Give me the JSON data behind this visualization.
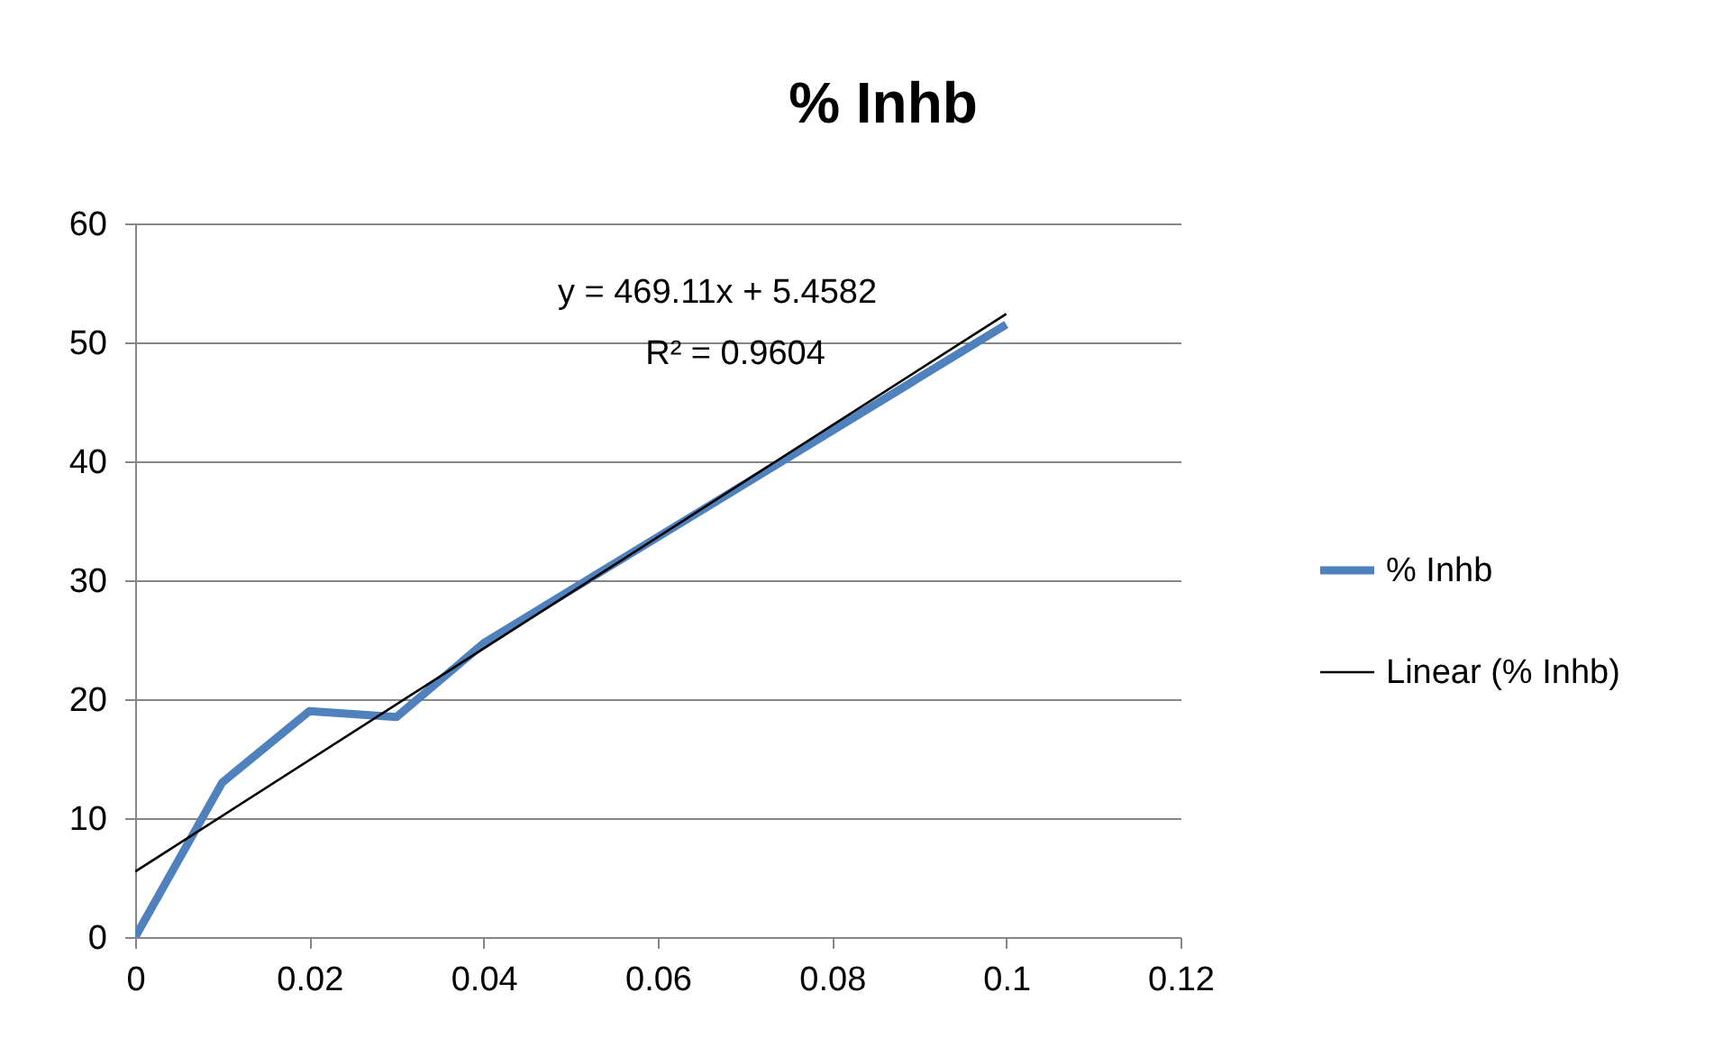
{
  "chart_data": {
    "type": "line",
    "title": "% Inhb",
    "x": [
      0,
      0.01,
      0.02,
      0.03,
      0.04,
      0.1
    ],
    "series": [
      {
        "name": "% Inhb",
        "color": "#4f81bd",
        "values": [
          0,
          13,
          19,
          18.5,
          24.7,
          51.5
        ]
      },
      {
        "name": "Linear (% Inhb)",
        "color": "#000000",
        "type": "line",
        "x": [
          0,
          0.1
        ],
        "values": [
          5.5,
          52.4
        ]
      }
    ],
    "xlim": [
      0,
      0.12
    ],
    "xticks": [
      0,
      0.02,
      0.04,
      0.06,
      0.08,
      0.1,
      0.12
    ],
    "ylim": [
      0,
      60
    ],
    "yticks": [
      0,
      10,
      20,
      30,
      40,
      50,
      60
    ],
    "grid": "y",
    "legend": "right",
    "annotations": [
      "y = 469.11x + 5.4582",
      "R² = 0.9604"
    ]
  }
}
